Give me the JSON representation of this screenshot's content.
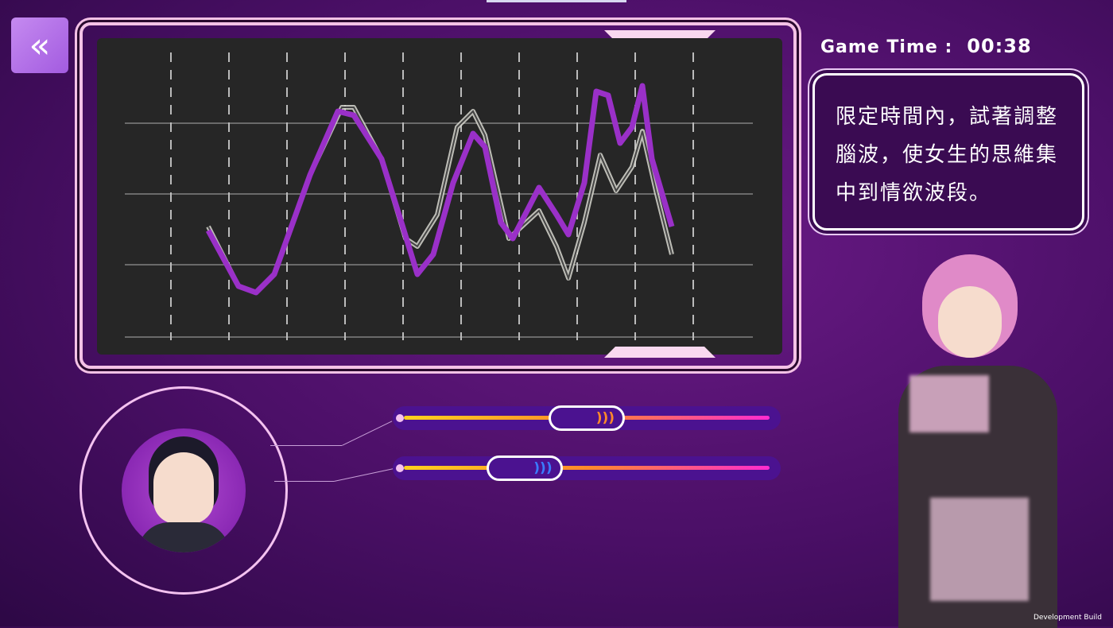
{
  "back_button": {
    "icon": "double-chevron-left-icon",
    "label": "«"
  },
  "timer": {
    "label": "Game Time :",
    "value": "00:38"
  },
  "hint": {
    "text": "限定時間內，試著調整腦波，使女生的思維集中到情欲波段。"
  },
  "wave_graph": {
    "target_wave_color": "#d8d8d0",
    "player_wave_color": "#9a30c8"
  },
  "sliders": [
    {
      "value_percent": 50,
      "knob_color": "#ff8a2a",
      "glyph": ")))"
    },
    {
      "value_percent": 30,
      "knob_color": "#3a7cff",
      "glyph": ")))"
    }
  ],
  "footer": {
    "build_label": "Development Build"
  }
}
